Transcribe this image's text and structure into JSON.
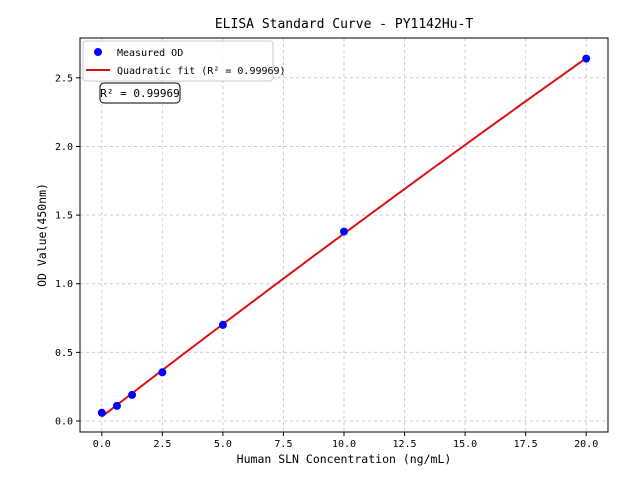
{
  "chart_data": {
    "type": "scatter",
    "title": "ELISA Standard Curve - PY1142Hu-T",
    "xlabel": "Human SLN Concentration (ng/mL)",
    "ylabel": "OD Value(450nm)",
    "xlim": [
      -0.9,
      20.9
    ],
    "ylim": [
      -0.08,
      2.79
    ],
    "xticks": [
      0,
      2.5,
      5,
      7.5,
      10,
      12.5,
      15,
      17.5,
      20
    ],
    "xtick_labels": [
      "0.0",
      "2.5",
      "5.0",
      "7.5",
      "10.0",
      "12.5",
      "15.0",
      "17.5",
      "20.0"
    ],
    "yticks": [
      0,
      0.5,
      1,
      1.5,
      2,
      2.5
    ],
    "ytick_labels": [
      "0.0",
      "0.5",
      "1.0",
      "1.5",
      "2.0",
      "2.5"
    ],
    "grid": true,
    "legend_placement": "top-left",
    "series": [
      {
        "name": "Measured OD",
        "kind": "scatter",
        "color": "#0000ff",
        "x": [
          0,
          0.625,
          1.25,
          2.5,
          5,
          10,
          20
        ],
        "y": [
          0.06,
          0.11,
          0.19,
          0.355,
          0.7,
          1.38,
          2.64
        ]
      },
      {
        "name": "Quadratic fit (R² = 0.99969)",
        "kind": "line",
        "color": "#dd1111",
        "fit": "quadratic"
      }
    ],
    "annotation": "R² = 0.99969"
  }
}
